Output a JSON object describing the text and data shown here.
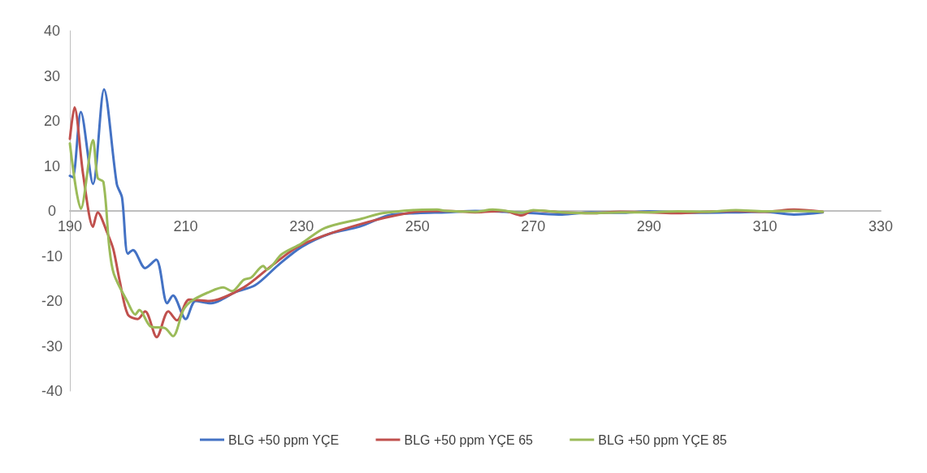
{
  "chart_data": {
    "type": "line",
    "xlim": [
      190,
      330
    ],
    "xticks": [
      190,
      210,
      230,
      250,
      270,
      290,
      310,
      330
    ],
    "ylim": [
      -40,
      40
    ],
    "yticks": [
      -40,
      -30,
      -20,
      -10,
      0,
      10,
      20,
      30,
      40
    ],
    "grid": false,
    "legend": "bottom",
    "marker": "none",
    "line_style": "solid",
    "series": [
      {
        "name": "BLG +50 ppm YÇE",
        "color": "#4472c4",
        "x": [
          190,
          190.5,
          191.9,
          194,
          195.9,
          198.1,
          199,
          200,
          200.9,
          203,
          204.9,
          206.8,
          207.8,
          210,
          211.7,
          214.4,
          216.5,
          218.6,
          222,
          226,
          230,
          235,
          240,
          245,
          250,
          255,
          260,
          265,
          270,
          275,
          280,
          285,
          290,
          295,
          300,
          305,
          310,
          315,
          320
        ],
        "values": [
          7.8,
          7.5,
          22,
          6,
          27,
          6,
          3,
          -9.5,
          -8.7,
          -12.7,
          -10.8,
          -20.5,
          -18.8,
          -24,
          -20,
          -20.5,
          -19.5,
          -18,
          -16.5,
          -12,
          -8,
          -5,
          -3.5,
          -1,
          -0.5,
          -0.3,
          0,
          -0.2,
          -0.5,
          -0.8,
          -0.3,
          -0.4,
          -0.1,
          -0.3,
          -0.4,
          -0.3,
          -0.2,
          -0.8,
          -0.3
        ]
      },
      {
        "name": "BLG +50 ppm YÇE 65",
        "color": "#c0504d",
        "x": [
          190,
          190.8,
          192.3,
          194,
          194.8,
          196.5,
          197.5,
          198.6,
          200,
          201.7,
          203,
          205,
          207,
          208.5,
          210.6,
          214,
          220,
          225,
          230,
          240,
          250,
          255,
          260,
          265,
          268,
          270,
          275,
          280,
          285,
          290,
          295,
          300,
          305,
          310,
          315,
          320
        ],
        "values": [
          16,
          23,
          8,
          -3.5,
          -0.3,
          -5,
          -8.5,
          -15.5,
          -23,
          -24,
          -22.3,
          -28,
          -22.3,
          -24.3,
          -19.7,
          -20,
          -17,
          -12,
          -7.5,
          -3,
          -0.2,
          0,
          -0.3,
          0,
          -1,
          0.1,
          -0.3,
          -0.5,
          -0.2,
          -0.3,
          -0.5,
          -0.2,
          0,
          -0.2,
          0.3,
          -0.2
        ]
      },
      {
        "name": "BLG +50 ppm YÇE 85",
        "color": "#9bbb59",
        "x": [
          190,
          191.9,
          194,
          194.8,
          195.8,
          196.8,
          197.6,
          200,
          201.3,
          202,
          204,
          206.4,
          207.8,
          209.6,
          211,
          214.4,
          216.5,
          218,
          220,
          221.3,
          223.4,
          224,
          226.6,
          229.9,
          234,
          240.4,
          244,
          249.2,
          253.4,
          255,
          260,
          263,
          268,
          270,
          275,
          280,
          285,
          290,
          295,
          300,
          305,
          310,
          315,
          320
        ],
        "values": [
          15,
          0.5,
          15.7,
          7.3,
          6.4,
          -8,
          -14,
          -20.3,
          -23,
          -22,
          -25.7,
          -26,
          -27.8,
          -22,
          -20,
          -17.8,
          -17,
          -17.8,
          -15.3,
          -14.8,
          -12.2,
          -13,
          -9.6,
          -7.3,
          -3.8,
          -1.7,
          -0.5,
          0.2,
          0.3,
          0,
          -0.2,
          0.3,
          -0.4,
          0.2,
          -0.3,
          -0.5,
          -0.3,
          -0.3,
          -0.1,
          -0.2,
          0.2,
          -0.1,
          0,
          -0.2
        ]
      }
    ]
  }
}
